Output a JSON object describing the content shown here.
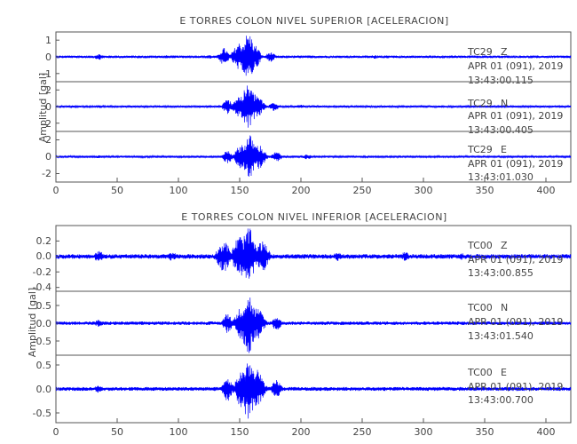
{
  "chart_data": [
    {
      "type": "line",
      "title": "E TORRES COLON NIVEL SUPERIOR [ACELERACION]",
      "ylabel": "Amplitud [gal]",
      "xlim": [
        0,
        420
      ],
      "x_ticks": [
        "0",
        "50",
        "100",
        "150",
        "200",
        "250",
        "300",
        "350",
        "400"
      ],
      "color": "#0000ff",
      "series": [
        {
          "ylim": [
            -1.5,
            1.5
          ],
          "y_ticks": [
            "1",
            "0",
            "-1"
          ],
          "station": "TC29",
          "component": "Z",
          "date": "APR 01 (091), 2019",
          "time": "13:43:00.115",
          "peak_abs": 1.45,
          "noise_abs": 0.08,
          "events": [
            {
              "t": 35,
              "amp": 0.18
            },
            {
              "t": 90,
              "amp": 0.1
            },
            {
              "t": 125,
              "amp": 0.12
            },
            {
              "t": 137,
              "amp": 0.55
            },
            {
              "t": 150,
              "amp": 0.9
            },
            {
              "t": 157,
              "amp": 1.45
            },
            {
              "t": 163,
              "amp": 0.7
            },
            {
              "t": 175,
              "amp": 0.3
            },
            {
              "t": 260,
              "amp": 0.12
            }
          ]
        },
        {
          "ylim": [
            -3,
            3
          ],
          "y_ticks": [
            "2",
            "0",
            "-2"
          ],
          "station": "TC29",
          "component": "N",
          "date": "APR 01 (091), 2019",
          "time": "13:43:00.405",
          "peak_abs": 2.7,
          "noise_abs": 0.12,
          "events": [
            {
              "t": 35,
              "amp": 0.2
            },
            {
              "t": 140,
              "amp": 0.9
            },
            {
              "t": 150,
              "amp": 1.4
            },
            {
              "t": 157,
              "amp": 2.7
            },
            {
              "t": 163,
              "amp": 1.6
            },
            {
              "t": 178,
              "amp": 0.6
            },
            {
              "t": 200,
              "amp": 0.25
            }
          ]
        },
        {
          "ylim": [
            -3,
            3
          ],
          "y_ticks": [
            "2",
            "0",
            "-2"
          ],
          "station": "TC29",
          "component": "E",
          "date": "APR 01 (091), 2019",
          "time": "13:43:01.030",
          "peak_abs": 2.6,
          "noise_abs": 0.12,
          "events": [
            {
              "t": 35,
              "amp": 0.2
            },
            {
              "t": 140,
              "amp": 0.8
            },
            {
              "t": 152,
              "amp": 1.6
            },
            {
              "t": 158,
              "amp": 2.6
            },
            {
              "t": 165,
              "amp": 1.5
            },
            {
              "t": 180,
              "amp": 0.6
            },
            {
              "t": 205,
              "amp": 0.3
            }
          ]
        }
      ]
    },
    {
      "type": "line",
      "title": "E TORRES COLON NIVEL INFERIOR [ACELERACION]",
      "ylabel": "Amplitud [gal]",
      "xlim": [
        0,
        420
      ],
      "x_ticks": [
        "0",
        "50",
        "100",
        "150",
        "200",
        "250",
        "300",
        "350",
        "400"
      ],
      "color": "#0000ff",
      "series": [
        {
          "ylim": [
            -0.45,
            0.4
          ],
          "y_ticks": [
            "0.2",
            "0.0",
            "-0.2",
            "-0.4"
          ],
          "station": "TC00",
          "component": "Z",
          "date": "APR 01 (091), 2019",
          "time": "13:43:00.855",
          "peak_abs": 0.38,
          "noise_abs": 0.03,
          "events": [
            {
              "t": 35,
              "amp": 0.08
            },
            {
              "t": 95,
              "amp": 0.06
            },
            {
              "t": 137,
              "amp": 0.2
            },
            {
              "t": 150,
              "amp": 0.28
            },
            {
              "t": 157,
              "amp": 0.38
            },
            {
              "t": 168,
              "amp": 0.2
            },
            {
              "t": 230,
              "amp": 0.06
            },
            {
              "t": 285,
              "amp": 0.06
            },
            {
              "t": 330,
              "amp": 0.05
            }
          ]
        },
        {
          "ylim": [
            -0.9,
            0.9
          ],
          "y_ticks": [
            "0.5",
            "0.0",
            "-0.5"
          ],
          "station": "TC00",
          "component": "N",
          "date": "APR 01 (091), 2019",
          "time": "13:43:01.540",
          "peak_abs": 0.85,
          "noise_abs": 0.05,
          "events": [
            {
              "t": 35,
              "amp": 0.1
            },
            {
              "t": 140,
              "amp": 0.3
            },
            {
              "t": 152,
              "amp": 0.5
            },
            {
              "t": 157,
              "amp": 0.85
            },
            {
              "t": 164,
              "amp": 0.45
            },
            {
              "t": 180,
              "amp": 0.2
            }
          ]
        },
        {
          "ylim": [
            -0.7,
            0.7
          ],
          "y_ticks": [
            "0.5",
            "0.0",
            "-0.5"
          ],
          "station": "TC00",
          "component": "E",
          "date": "APR 01 (091), 2019",
          "time": "13:43:00.700",
          "peak_abs": 0.65,
          "noise_abs": 0.04,
          "events": [
            {
              "t": 35,
              "amp": 0.08
            },
            {
              "t": 140,
              "amp": 0.25
            },
            {
              "t": 152,
              "amp": 0.4
            },
            {
              "t": 157,
              "amp": 0.65
            },
            {
              "t": 164,
              "amp": 0.4
            },
            {
              "t": 180,
              "amp": 0.2
            }
          ]
        }
      ]
    }
  ]
}
